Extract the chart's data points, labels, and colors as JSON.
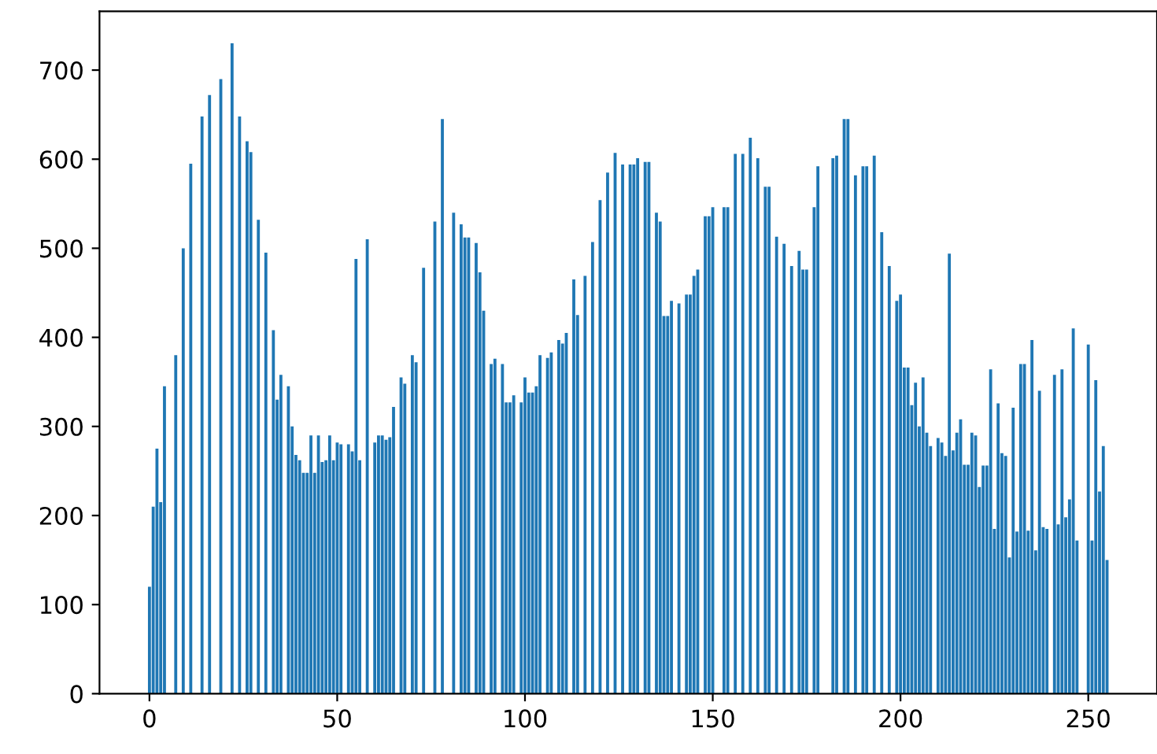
{
  "chart_data": {
    "type": "bar",
    "x": [
      0,
      1,
      2,
      3,
      4,
      5,
      6,
      7,
      8,
      9,
      10,
      11,
      12,
      13,
      14,
      15,
      16,
      17,
      18,
      19,
      20,
      21,
      22,
      23,
      24,
      25,
      26,
      27,
      28,
      29,
      30,
      31,
      32,
      33,
      34,
      35,
      36,
      37,
      38,
      39,
      40,
      41,
      42,
      43,
      44,
      45,
      46,
      47,
      48,
      49,
      50,
      51,
      52,
      53,
      54,
      55,
      56,
      57,
      58,
      59,
      60,
      61,
      62,
      63,
      64,
      65,
      66,
      67,
      68,
      69,
      70,
      71,
      72,
      73,
      74,
      75,
      76,
      77,
      78,
      79,
      80,
      81,
      82,
      83,
      84,
      85,
      86,
      87,
      88,
      89,
      90,
      91,
      92,
      93,
      94,
      95,
      96,
      97,
      98,
      99,
      100,
      101,
      102,
      103,
      104,
      105,
      106,
      107,
      108,
      109,
      110,
      111,
      112,
      113,
      114,
      115,
      116,
      117,
      118,
      119,
      120,
      121,
      122,
      123,
      124,
      125,
      126,
      127,
      128,
      129,
      130,
      131,
      132,
      133,
      134,
      135,
      136,
      137,
      138,
      139,
      140,
      141,
      142,
      143,
      144,
      145,
      146,
      147,
      148,
      149,
      150,
      151,
      152,
      153,
      154,
      155,
      156,
      157,
      158,
      159,
      160,
      161,
      162,
      163,
      164,
      165,
      166,
      167,
      168,
      169,
      170,
      171,
      172,
      173,
      174,
      175,
      176,
      177,
      178,
      179,
      180,
      181,
      182,
      183,
      184,
      185,
      186,
      187,
      188,
      189,
      190,
      191,
      192,
      193,
      194,
      195,
      196,
      197,
      198,
      199,
      200,
      201,
      202,
      203,
      204,
      205,
      206,
      207,
      208,
      209,
      210,
      211,
      212,
      213,
      214,
      215,
      216,
      217,
      218,
      219,
      220,
      221,
      222,
      223,
      224,
      225,
      226,
      227,
      228,
      229,
      230,
      231,
      232,
      233,
      234,
      235,
      236,
      237,
      238,
      239,
      240,
      241,
      242,
      243,
      244,
      245,
      246,
      247,
      248,
      249,
      250,
      251,
      252,
      253,
      254,
      255
    ],
    "values": [
      120,
      210,
      275,
      215,
      345,
      0,
      0,
      380,
      0,
      500,
      0,
      595,
      0,
      0,
      648,
      0,
      672,
      0,
      0,
      690,
      0,
      0,
      730,
      0,
      648,
      0,
      620,
      608,
      0,
      532,
      0,
      495,
      0,
      408,
      330,
      358,
      0,
      345,
      300,
      268,
      262,
      248,
      248,
      290,
      248,
      290,
      260,
      262,
      290,
      262,
      282,
      280,
      0,
      280,
      272,
      488,
      262,
      0,
      510,
      0,
      282,
      290,
      290,
      285,
      288,
      322,
      0,
      355,
      348,
      0,
      380,
      372,
      0,
      478,
      0,
      0,
      530,
      0,
      645,
      0,
      0,
      540,
      0,
      527,
      512,
      512,
      0,
      506,
      473,
      430,
      0,
      370,
      376,
      0,
      370,
      327,
      327,
      335,
      0,
      327,
      355,
      338,
      338,
      345,
      380,
      0,
      377,
      383,
      0,
      397,
      393,
      405,
      0,
      465,
      425,
      0,
      469,
      0,
      507,
      0,
      554,
      0,
      585,
      0,
      607,
      0,
      594,
      0,
      594,
      594,
      601,
      0,
      597,
      597,
      0,
      540,
      530,
      424,
      424,
      441,
      0,
      438,
      0,
      448,
      448,
      469,
      476,
      0,
      536,
      536,
      546,
      0,
      0,
      546,
      546,
      0,
      606,
      0,
      606,
      0,
      624,
      0,
      601,
      0,
      569,
      569,
      0,
      513,
      0,
      505,
      0,
      480,
      0,
      497,
      476,
      476,
      0,
      546,
      592,
      0,
      0,
      0,
      601,
      604,
      0,
      645,
      645,
      0,
      582,
      0,
      592,
      592,
      0,
      604,
      0,
      518,
      0,
      480,
      0,
      441,
      448,
      366,
      366,
      324,
      349,
      300,
      355,
      293,
      278,
      0,
      287,
      282,
      267,
      494,
      273,
      293,
      308,
      257,
      257,
      293,
      290,
      232,
      256,
      256,
      364,
      185,
      326,
      270,
      267,
      153,
      321,
      182,
      370,
      370,
      183,
      397,
      161,
      340,
      187,
      185,
      0,
      358,
      190,
      364,
      198,
      218,
      410,
      172,
      0,
      0,
      392,
      172,
      352,
      227,
      278,
      150
    ],
    "color": "#1f77b4",
    "xlim": [
      -13.3,
      268.3
    ],
    "ylim": [
      0,
      766
    ],
    "xticks": [
      0,
      50,
      100,
      150,
      200,
      250
    ],
    "yticks": [
      0,
      100,
      200,
      300,
      400,
      500,
      600,
      700
    ],
    "grid": false
  }
}
